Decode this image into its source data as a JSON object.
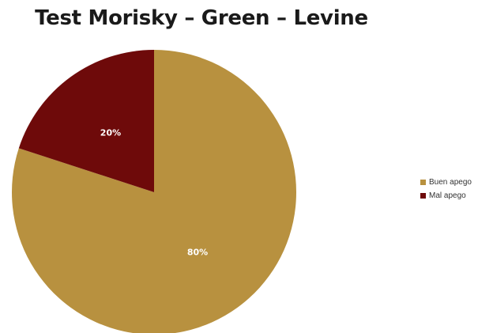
{
  "chart_data": {
    "type": "pie",
    "title": "Test Morisky – Green – Levine",
    "slices": [
      {
        "label": "Buen apego",
        "value": 80,
        "display": "80%",
        "color": "#B8913F"
      },
      {
        "label": "Mal apego",
        "value": 20,
        "display": "20%",
        "color": "#6E0A0A"
      }
    ],
    "legend_position": "right",
    "start_angle_deg": 0,
    "direction": "clockwise"
  }
}
